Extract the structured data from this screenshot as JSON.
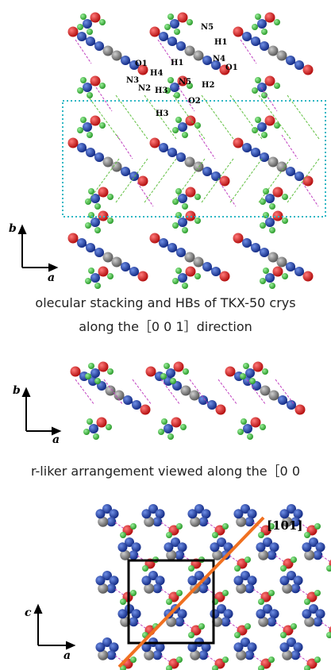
{
  "panel1": {
    "atom_labels": [
      "N5",
      "H1",
      "O1",
      "N4",
      "H1",
      "H4",
      "N3",
      "N2",
      "H3",
      "N5",
      "H2",
      "O2",
      "H3",
      "O1"
    ],
    "axis_b": "b",
    "axis_a": "a",
    "caption_line1": "olecular stacking and HBs of TKX-50 crys",
    "caption_line2": "along the［0 0 1］direction"
  },
  "panel2": {
    "axis_b": "b",
    "axis_a": "a",
    "caption": "r-liker arrangement viewed along the［0 0"
  },
  "panel3": {
    "direction_label": "[101]",
    "axis_c": "c",
    "axis_a": "a"
  },
  "colors": {
    "nitrogen": "#1f3fa8",
    "oxygen": "#d81e1e",
    "hydrogen": "#3dbf3d",
    "carbon": "#8a8a8a",
    "hbond_magenta": "#c040c0",
    "hbond_green": "#5fbf3f",
    "highlight_box": "#2fb7c4",
    "direction_line": "#f07020"
  }
}
